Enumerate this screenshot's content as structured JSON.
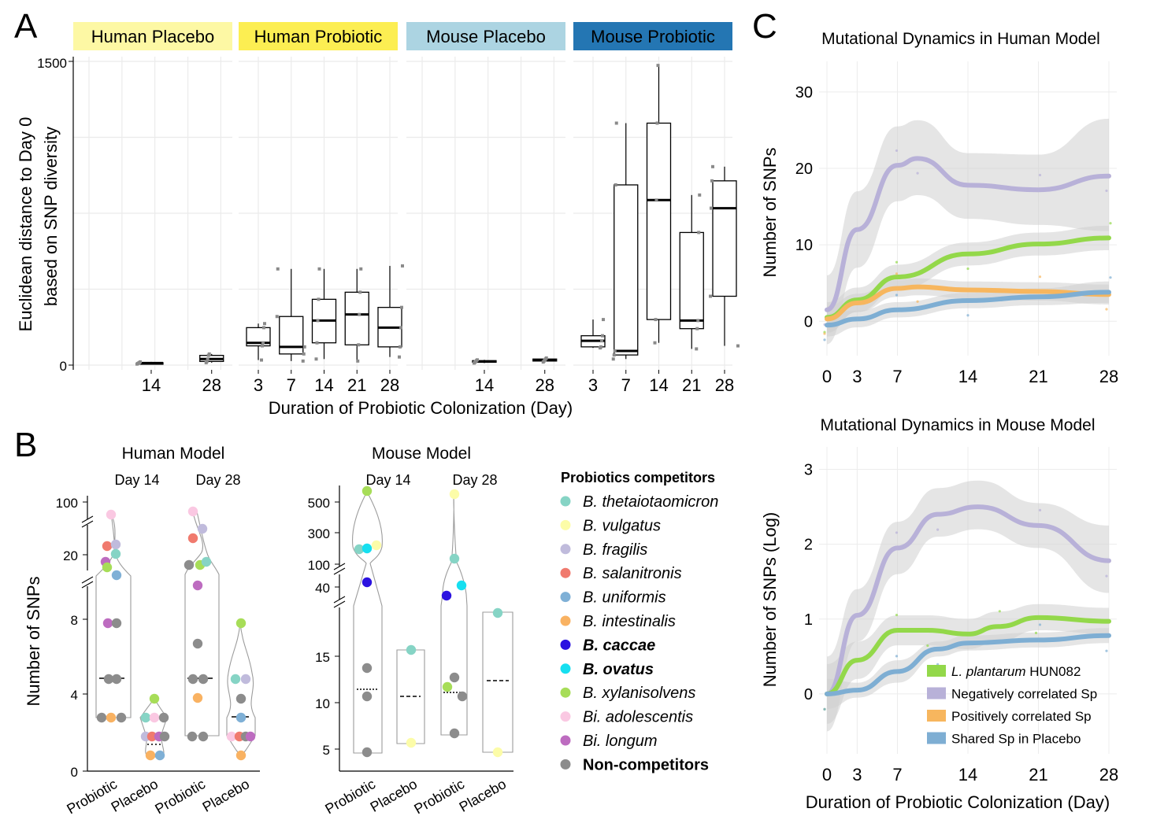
{
  "panel_letters": [
    "A",
    "B",
    "C"
  ],
  "colors": {
    "human_placebo_strip": "#fdf8a4",
    "human_probiotic_strip": "#fcee52",
    "mouse_placebo_strip": "#acd4e2",
    "mouse_probiotic_strip": "#2476b3",
    "l_plantarum": "#93d84a",
    "negatively_correlated": "#b8b1d8",
    "positively_correlated": "#f7b65e",
    "shared_placebo": "#7eaed3",
    "ci_band": "#cfcfcf"
  },
  "chart_data": [
    {
      "id": "A",
      "type": "box",
      "facets": [
        "Human Placebo",
        "Human Probiotic",
        "Mouse Placebo",
        "Mouse Probiotic"
      ],
      "xlabel": "Duration of Probiotic Colonization (Day)",
      "ylabel_lines": [
        "Euclidean distance to Day 0",
        "based on SNP diversity"
      ],
      "ylim": [
        0,
        1500
      ],
      "yticks": [
        "0",
        "1500"
      ],
      "x_ticks": [
        [
          "14",
          "28"
        ],
        [
          "3",
          "7",
          "14",
          "21",
          "28"
        ],
        [
          "14",
          "28"
        ],
        [
          "3",
          "7",
          "14",
          "21",
          "28"
        ]
      ],
      "boxes": [
        {
          "facet": 0,
          "day": 14,
          "min": 5,
          "q1": 8,
          "median": 10,
          "q3": 12,
          "max": 16
        },
        {
          "facet": 0,
          "day": 28,
          "min": 12,
          "q1": 18,
          "median": 30,
          "q3": 48,
          "max": 55
        },
        {
          "facet": 1,
          "day": 3,
          "min": 25,
          "q1": 95,
          "median": 110,
          "q3": 185,
          "max": 205
        },
        {
          "facet": 1,
          "day": 7,
          "min": 20,
          "q1": 55,
          "median": 90,
          "q3": 240,
          "max": 475
        },
        {
          "facet": 1,
          "day": 14,
          "min": 30,
          "q1": 110,
          "median": 220,
          "q3": 325,
          "max": 475
        },
        {
          "facet": 1,
          "day": 21,
          "min": 20,
          "q1": 100,
          "median": 250,
          "q3": 360,
          "max": 475
        },
        {
          "facet": 1,
          "day": 28,
          "min": 40,
          "q1": 90,
          "median": 185,
          "q3": 285,
          "max": 490
        },
        {
          "facet": 2,
          "day": 14,
          "min": 10,
          "q1": 14,
          "median": 18,
          "q3": 22,
          "max": 26
        },
        {
          "facet": 2,
          "day": 28,
          "min": 15,
          "q1": 20,
          "median": 25,
          "q3": 30,
          "max": 35
        },
        {
          "facet": 3,
          "day": 3,
          "min": 85,
          "q1": 90,
          "median": 120,
          "q3": 145,
          "max": 225
        },
        {
          "facet": 3,
          "day": 7,
          "min": 30,
          "q1": 50,
          "median": 70,
          "q3": 890,
          "max": 1195
        },
        {
          "facet": 3,
          "day": 14,
          "min": 110,
          "q1": 225,
          "median": 815,
          "q3": 1195,
          "max": 1480
        },
        {
          "facet": 3,
          "day": 21,
          "min": 80,
          "q1": 180,
          "median": 220,
          "q3": 655,
          "max": 840
        },
        {
          "facet": 3,
          "day": 28,
          "min": 95,
          "q1": 340,
          "median": 775,
          "q3": 910,
          "max": 980
        }
      ]
    },
    {
      "id": "B-human",
      "type": "violin",
      "title": "Human Model",
      "day_labels": [
        "Day 14",
        "Day 28"
      ],
      "xlabels": [
        "Probiotic",
        "Placebo",
        "Probiotic",
        "Placebo"
      ],
      "ylabel": "Number of SNPs",
      "yticks_lower": [
        "0",
        "4",
        "8"
      ],
      "yticks_upper": [
        "20",
        "100"
      ]
    },
    {
      "id": "B-mouse",
      "type": "violin",
      "title": "Mouse Model",
      "day_labels": [
        "Day 14",
        "Day 28"
      ],
      "xlabels": [
        "Probiotic",
        "Placebo",
        "Probiotic",
        "Placebo"
      ],
      "yticks_lower": [
        "5",
        "10",
        "15"
      ],
      "yticks_mid": [
        "40"
      ],
      "yticks_upper": [
        "100",
        "300",
        "500"
      ]
    },
    {
      "id": "C-human",
      "type": "line",
      "title": "Mutational Dynamics in Human Model",
      "ylabel": "Number of SNPs",
      "x_ticks": [
        0,
        3,
        7,
        14,
        21,
        28
      ],
      "y_ticks": [
        0,
        10,
        20,
        30
      ],
      "xlim": [
        0,
        28
      ],
      "ylim": [
        -4.5,
        34
      ],
      "series": [
        {
          "key": "negatively_correlated",
          "x": [
            0,
            3,
            7,
            9,
            14,
            21,
            28
          ],
          "y": [
            1.5,
            12,
            20.4,
            21.3,
            17.8,
            17.2,
            19.0
          ],
          "lo": [
            -3,
            7,
            15.7,
            16.5,
            13.4,
            12.6,
            11.8
          ],
          "hi": [
            6,
            17,
            25.5,
            26.3,
            22,
            21.8,
            26.5
          ]
        },
        {
          "key": "l_plantarum",
          "x": [
            0,
            3,
            7,
            14,
            21,
            28
          ],
          "y": [
            0.5,
            2.8,
            5.8,
            8.8,
            10.1,
            10.9
          ],
          "lo": [
            -1.5,
            1.2,
            4.2,
            7.3,
            8.6,
            9.3
          ],
          "hi": [
            2.5,
            4.4,
            7.4,
            10.3,
            11.6,
            12.5
          ]
        },
        {
          "key": "positively_correlated",
          "x": [
            0,
            3,
            7,
            9,
            14,
            21,
            28
          ],
          "y": [
            0.3,
            2.4,
            4.3,
            4.5,
            4.1,
            3.9,
            3.5
          ],
          "lo": [
            -1.5,
            1.2,
            3.2,
            3.4,
            3.0,
            2.7,
            2.2
          ],
          "hi": [
            2.0,
            3.6,
            5.4,
            5.6,
            5.2,
            5.1,
            4.8
          ]
        },
        {
          "key": "shared_placebo",
          "x": [
            0,
            3,
            7,
            14,
            21,
            28
          ],
          "y": [
            -0.5,
            0.3,
            1.5,
            2.7,
            3.2,
            3.8
          ],
          "lo": [
            -2,
            -0.8,
            0.5,
            1.7,
            2.1,
            2.4
          ],
          "hi": [
            1,
            1.4,
            2.5,
            3.7,
            4.3,
            5.2
          ]
        }
      ]
    },
    {
      "id": "C-mouse",
      "type": "line",
      "title": "Mutational Dynamics in Mouse Model",
      "ylabel": "Number of SNPs (Log)",
      "xlabel": "Duration of Probiotic Colonization (Day)",
      "x_ticks": [
        0,
        3,
        7,
        14,
        21,
        28
      ],
      "y_ticks": [
        0,
        1,
        2,
        3
      ],
      "xlim": [
        0,
        28
      ],
      "ylim": [
        -0.8,
        3.3
      ],
      "series": [
        {
          "key": "negatively_correlated",
          "x": [
            0,
            3,
            7,
            11,
            15,
            21,
            28
          ],
          "y": [
            0.0,
            1.05,
            1.95,
            2.4,
            2.5,
            2.25,
            1.78
          ],
          "lo": [
            -0.5,
            0.7,
            1.6,
            2.1,
            2.2,
            1.95,
            1.35
          ],
          "hi": [
            0.5,
            1.4,
            2.3,
            2.75,
            2.85,
            2.55,
            2.25
          ]
        },
        {
          "key": "l_plantarum",
          "x": [
            0,
            3,
            7,
            10,
            14,
            17,
            21,
            28
          ],
          "y": [
            0.0,
            0.45,
            0.85,
            0.85,
            0.8,
            0.9,
            1.02,
            0.97
          ],
          "lo": [
            -0.4,
            0.2,
            0.65,
            0.65,
            0.6,
            0.7,
            0.85,
            0.8
          ],
          "hi": [
            0.4,
            0.7,
            1.05,
            1.05,
            1.0,
            1.1,
            1.2,
            1.15
          ]
        },
        {
          "key": "shared_placebo",
          "x": [
            0,
            3,
            7,
            11,
            14,
            21,
            28
          ],
          "y": [
            0.0,
            0.05,
            0.3,
            0.6,
            0.68,
            0.72,
            0.78
          ],
          "lo": [
            -0.2,
            -0.05,
            0.15,
            0.5,
            0.58,
            0.62,
            0.68
          ],
          "hi": [
            0.2,
            0.15,
            0.45,
            0.7,
            0.78,
            0.82,
            0.88
          ]
        }
      ],
      "legend": [
        {
          "key": "l_plantarum",
          "italic": "L. plantarum",
          "label": " HUN082"
        },
        {
          "key": "negatively_correlated",
          "label": "Negatively correlated Sp"
        },
        {
          "key": "positively_correlated",
          "label": "Positively correlated Sp"
        },
        {
          "key": "shared_placebo",
          "label": "Shared Sp in Placebo"
        }
      ]
    }
  ],
  "legend_B": {
    "title": "Probiotics competitors",
    "items": [
      {
        "label": "B. thetaiotaomicron",
        "color": "#86d4c5",
        "italic": true,
        "bold": false
      },
      {
        "label": "B. vulgatus",
        "color": "#fcfca8",
        "italic": true,
        "bold": false
      },
      {
        "label": "B. fragilis",
        "color": "#c0bbdc",
        "italic": true,
        "bold": false
      },
      {
        "label": "B. salanitronis",
        "color": "#f07a6e",
        "italic": true,
        "bold": false
      },
      {
        "label": "B. uniformis",
        "color": "#7fb0d6",
        "italic": true,
        "bold": false
      },
      {
        "label": "B. intestinalis",
        "color": "#f9b262",
        "italic": true,
        "bold": false
      },
      {
        "label": "B. caccae",
        "color": "#2b12e0",
        "italic": true,
        "bold": true
      },
      {
        "label": "B. ovatus",
        "color": "#16dff0",
        "italic": true,
        "bold": true
      },
      {
        "label": "B. xylanisolvens",
        "color": "#a7dd58",
        "italic": true,
        "bold": false
      },
      {
        "label": "Bi. adolescentis",
        "color": "#fac8e2",
        "italic": true,
        "bold": false
      },
      {
        "label": "Bi. longum",
        "color": "#bd6cc0",
        "italic": true,
        "bold": false
      },
      {
        "label": "Non-competitors",
        "color": "#8c8c8c",
        "italic": false,
        "bold": true
      }
    ]
  }
}
